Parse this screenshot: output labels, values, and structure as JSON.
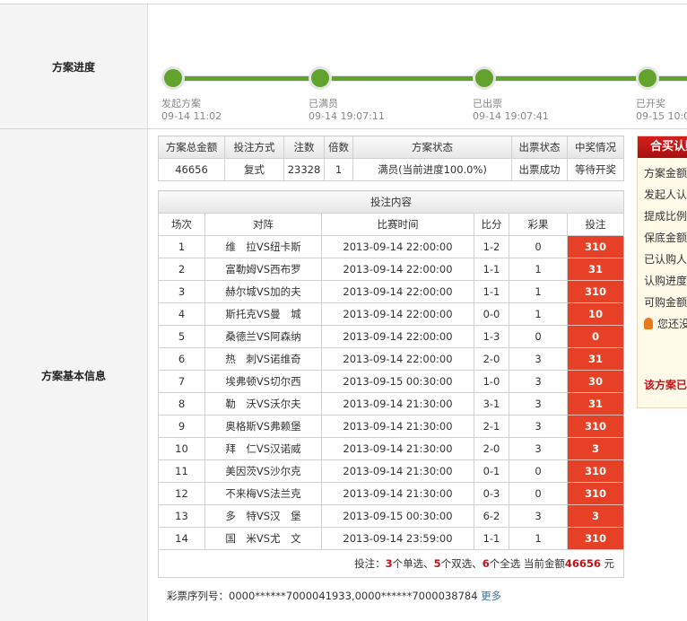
{
  "sections": {
    "progress": "方案进度",
    "basic": "方案基本信息"
  },
  "progress": [
    {
      "label": "发起方案",
      "time": "09-14 11:02"
    },
    {
      "label": "已满员",
      "time": "09-14 19:07:11"
    },
    {
      "label": "已出票",
      "time": "09-14 19:07:41"
    },
    {
      "label": "已开奖",
      "time": "09-15 10:0"
    }
  ],
  "progress_color": "#62a32d",
  "summary": {
    "headers": [
      "方案总金额",
      "投注方式",
      "注数",
      "倍数",
      "方案状态",
      "出票状态",
      "中奖情况"
    ],
    "values": [
      "46656",
      "复式",
      "23328",
      "1",
      "满员(当前进度100.0%)",
      "出票成功",
      "等待开奖"
    ]
  },
  "bets": {
    "title": "投注内容",
    "headers": [
      "场次",
      "对阵",
      "比赛时间",
      "比分",
      "彩果",
      "投注"
    ],
    "rows": [
      [
        "1",
        "维　拉VS纽卡斯",
        "2013-09-14 22:00:00",
        "1-2",
        "0",
        "310"
      ],
      [
        "2",
        "富勒姆VS西布罗",
        "2013-09-14 22:00:00",
        "1-1",
        "1",
        "31"
      ],
      [
        "3",
        "赫尔城VS加的夫",
        "2013-09-14 22:00:00",
        "1-1",
        "1",
        "310"
      ],
      [
        "4",
        "斯托克VS曼　城",
        "2013-09-14 22:00:00",
        "0-0",
        "1",
        "10"
      ],
      [
        "5",
        "桑德兰VS阿森纳",
        "2013-09-14 22:00:00",
        "1-3",
        "0",
        "0"
      ],
      [
        "6",
        "热　刺VS诺维奇",
        "2013-09-14 22:00:00",
        "2-0",
        "3",
        "31"
      ],
      [
        "7",
        "埃弗顿VS切尔西",
        "2013-09-15 00:30:00",
        "1-0",
        "3",
        "30"
      ],
      [
        "8",
        "勒　沃VS沃尔夫",
        "2013-09-14 21:30:00",
        "3-1",
        "3",
        "31"
      ],
      [
        "9",
        "奥格斯VS弗赖堡",
        "2013-09-14 21:30:00",
        "2-1",
        "3",
        "310"
      ],
      [
        "10",
        "拜　仁VS汉诺威",
        "2013-09-14 21:30:00",
        "2-0",
        "3",
        "3"
      ],
      [
        "11",
        "美因茨VS沙尔克",
        "2013-09-14 21:30:00",
        "0-1",
        "0",
        "310"
      ],
      [
        "12",
        "不来梅VS法兰克",
        "2013-09-14 21:30:00",
        "0-3",
        "0",
        "310"
      ],
      [
        "13",
        "多　特VS汉　堡",
        "2013-09-15 00:30:00",
        "6-2",
        "3",
        "3"
      ],
      [
        "14",
        "国　米VS尤　文",
        "2013-09-14 23:59:00",
        "1-1",
        "1",
        "310"
      ]
    ],
    "footer": {
      "prefix": "投注：",
      "single": "3",
      "t1": "个单选、",
      "double": "5",
      "t2": "个双选、",
      "full": "6",
      "t3": "个全选 当前金额",
      "amount": "46656",
      "unit": " 元"
    }
  },
  "serial": {
    "label": "彩票序列号：",
    "value": "0000******7000041933,0000******7000038784",
    "more": "更多"
  },
  "panel": {
    "title": "合买认购",
    "items": [
      "方案金额",
      "发起人认",
      "提成比例",
      "保底金额",
      "已认购人",
      "认购进度",
      "可购金额"
    ],
    "notice": "您还没",
    "status": "该方案已"
  }
}
